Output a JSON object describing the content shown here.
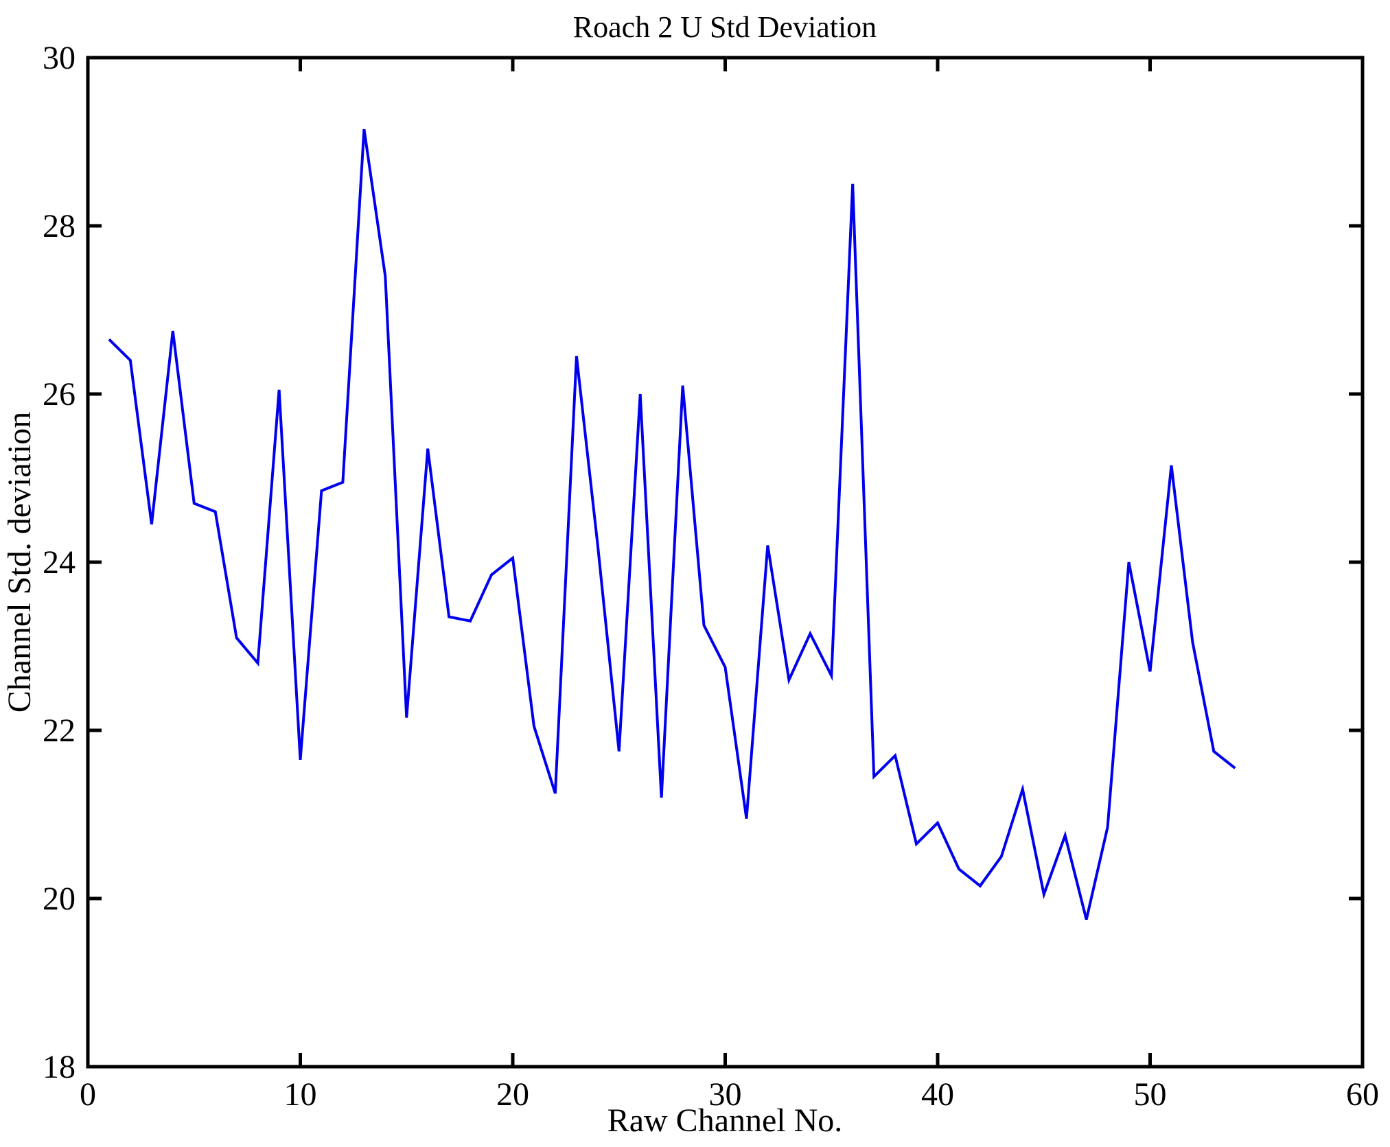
{
  "figure": {
    "background_color": "#ffffff",
    "frame_color": "#000000"
  },
  "chart_data": {
    "type": "line",
    "title": "Roach 2 U Std Deviation",
    "xlabel": "Raw Channel No.",
    "ylabel": "Channel Std. deviation",
    "xlim": [
      0,
      60
    ],
    "ylim": [
      18,
      30
    ],
    "xticks": [
      0,
      10,
      20,
      30,
      40,
      50,
      60
    ],
    "yticks": [
      18,
      20,
      22,
      24,
      26,
      28,
      30
    ],
    "grid": false,
    "legend": "none",
    "line_color": "#0000EE",
    "series": [
      {
        "name": "Channel Std deviation",
        "x": [
          1,
          2,
          3,
          4,
          5,
          6,
          7,
          8,
          9,
          10,
          11,
          12,
          13,
          14,
          15,
          16,
          17,
          18,
          19,
          20,
          21,
          22,
          23,
          24,
          25,
          26,
          27,
          28,
          29,
          30,
          31,
          32,
          33,
          34,
          35,
          36,
          37,
          38,
          39,
          40,
          41,
          42,
          43,
          44,
          45,
          46,
          47,
          48,
          49,
          50,
          51,
          52,
          53,
          54
        ],
        "values": [
          26.65,
          26.4,
          24.45,
          26.75,
          24.7,
          24.6,
          23.1,
          22.8,
          26.05,
          21.65,
          24.85,
          24.95,
          29.15,
          27.4,
          22.15,
          25.35,
          23.35,
          23.3,
          23.85,
          24.05,
          22.05,
          21.25,
          26.45,
          24.2,
          21.75,
          26.0,
          21.2,
          26.1,
          23.25,
          22.75,
          20.95,
          24.2,
          22.6,
          23.15,
          22.65,
          28.5,
          21.45,
          21.7,
          20.65,
          20.9,
          20.35,
          20.15,
          20.5,
          21.3,
          20.05,
          20.75,
          19.75,
          20.85,
          24.0,
          22.7,
          25.15,
          23.05,
          21.75,
          21.55
        ]
      }
    ]
  }
}
